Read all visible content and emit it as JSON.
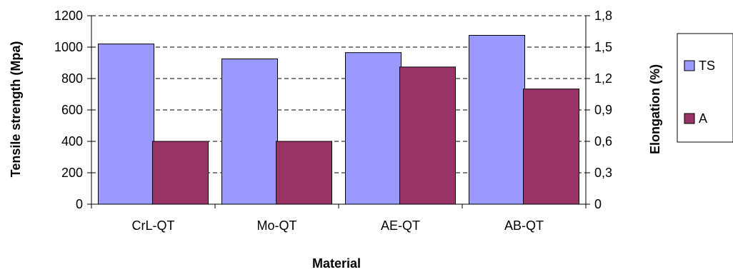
{
  "chart_data": {
    "type": "bar",
    "title": "",
    "categories": [
      "CrL-QT",
      "Mo-QT",
      "AE-QT",
      "AB-QT"
    ],
    "xlabel": "Material",
    "ylabel_left": "Tensile strength (Mpa)",
    "ylabel_right": "Elongation (%)",
    "ylim_left": [
      0,
      1200
    ],
    "ylim_right": [
      0,
      1.8
    ],
    "yticks_left": [
      "0",
      "200",
      "400",
      "600",
      "800",
      "1000",
      "1200"
    ],
    "yticks_right": [
      "0",
      "0,3",
      "0,6",
      "0,9",
      "1,2",
      "1,5",
      "1,8"
    ],
    "grid": "horizontal dashed",
    "legend_position": "right",
    "series": [
      {
        "name": "TS",
        "axis": "left",
        "color": "#9999ff",
        "values": [
          1020,
          925,
          965,
          1075
        ]
      },
      {
        "name": "A",
        "axis": "right",
        "color": "#993366",
        "values": [
          0.6,
          0.6,
          1.31,
          1.1
        ]
      }
    ]
  }
}
